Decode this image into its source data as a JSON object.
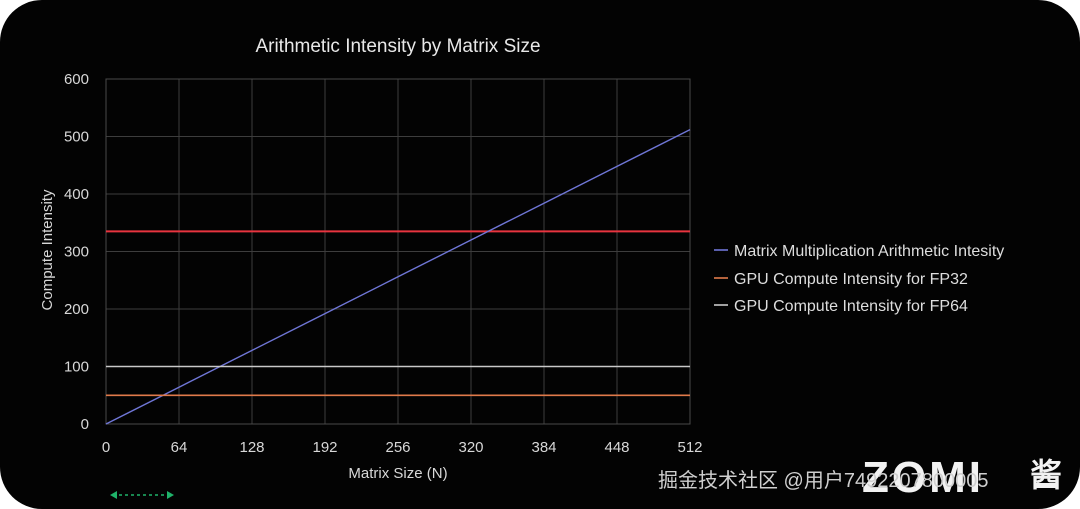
{
  "chart_data": {
    "type": "line",
    "title": "Arithmetic Intensity by Matrix Size",
    "xlabel": "Matrix Size (N)",
    "ylabel": "Compute Intensity",
    "xlim": [
      0,
      512
    ],
    "ylim": [
      0,
      600
    ],
    "x_ticks": [
      "0",
      "64",
      "128",
      "192",
      "256",
      "320",
      "384",
      "448",
      "512"
    ],
    "y_ticks": [
      "0",
      "100",
      "200",
      "300",
      "400",
      "500",
      "600"
    ],
    "grid": true,
    "legend_position": "right",
    "series": [
      {
        "name": "Matrix Multiplication Arithmetic Intesity",
        "color": "#6f76d6",
        "x": [
          0,
          64,
          128,
          192,
          256,
          320,
          384,
          448,
          512
        ],
        "y": [
          0,
          64,
          128,
          192,
          256,
          320,
          384,
          448,
          512
        ]
      },
      {
        "name": "GPU Compute Intensity for FP32",
        "color": "#e07a4a",
        "x": [
          0,
          512
        ],
        "y": [
          50,
          50
        ]
      },
      {
        "name": "GPU Compute Intensity for FP64",
        "color": "#c9c9c9",
        "x": [
          0,
          512
        ],
        "y": [
          100,
          100
        ]
      }
    ],
    "reference_lines": [
      {
        "y": 335,
        "color": "#e8343f"
      }
    ]
  },
  "watermark": {
    "text": "掘金技术社区 @用户7492207800005",
    "logo_main": "ZOMI",
    "logo_suffix": "酱"
  },
  "accent_arrow_color": "#1fb36a"
}
